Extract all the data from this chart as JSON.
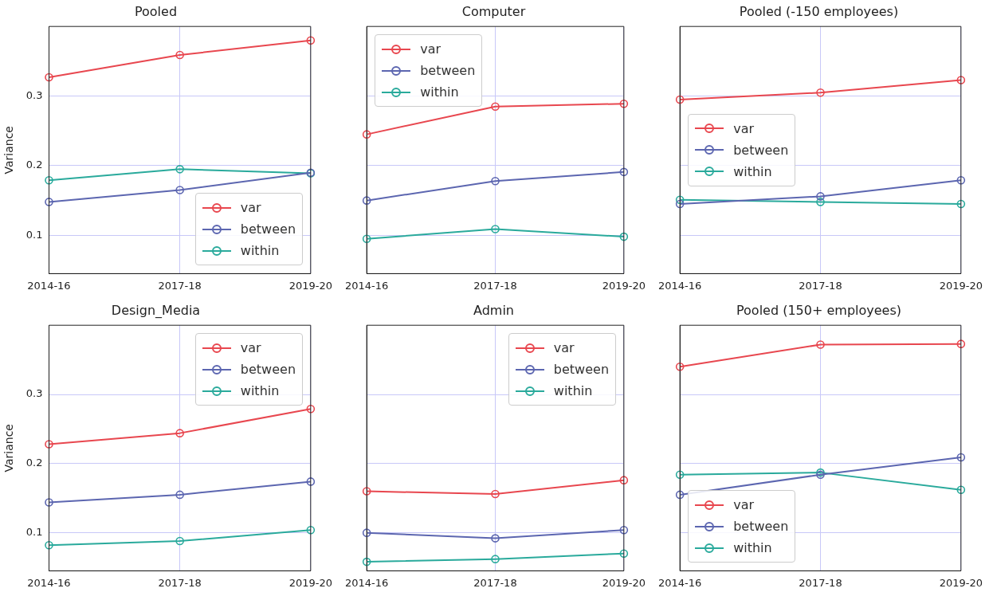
{
  "chart_data": [
    {
      "type": "line",
      "title": "Pooled",
      "ylabel": "Variance",
      "categories": [
        "2014-16",
        "2017-18",
        "2019-20"
      ],
      "ylim": [
        0.045,
        0.4
      ],
      "yticks": [
        0.1,
        0.2,
        0.3
      ],
      "grid": true,
      "legend": "bottom right",
      "marker": "circle",
      "series": [
        {
          "name": "var",
          "color": "#e8474f",
          "values": [
            0.327,
            0.359,
            0.38
          ]
        },
        {
          "name": "between",
          "color": "#5c66b0",
          "values": [
            0.148,
            0.165,
            0.19
          ]
        },
        {
          "name": "within",
          "color": "#2aaa9c",
          "values": [
            0.179,
            0.195,
            0.189
          ]
        }
      ]
    },
    {
      "type": "line",
      "title": "Computer",
      "categories": [
        "2014-16",
        "2017-18",
        "2019-20"
      ],
      "ylim": [
        0.045,
        0.4
      ],
      "yticks": [
        0.1,
        0.2,
        0.3
      ],
      "grid": true,
      "legend": "top left",
      "marker": "circle",
      "tick_labels": "x",
      "series": [
        {
          "name": "var",
          "color": "#e8474f",
          "values": [
            0.245,
            0.285,
            0.289
          ]
        },
        {
          "name": "between",
          "color": "#5c66b0",
          "values": [
            0.15,
            0.178,
            0.191
          ]
        },
        {
          "name": "within",
          "color": "#2aaa9c",
          "values": [
            0.095,
            0.109,
            0.098
          ]
        }
      ]
    },
    {
      "type": "line",
      "title": "Pooled (-150 employees)",
      "categories": [
        "2014-16",
        "2017-18",
        "2019-20"
      ],
      "ylim": [
        0.045,
        0.4
      ],
      "yticks": [
        0.1,
        0.2,
        0.3
      ],
      "grid": true,
      "legend": "left",
      "marker": "circle",
      "tick_labels": "x",
      "series": [
        {
          "name": "var",
          "color": "#e8474f",
          "values": [
            0.295,
            0.305,
            0.323
          ]
        },
        {
          "name": "between",
          "color": "#5c66b0",
          "values": [
            0.145,
            0.156,
            0.179
          ]
        },
        {
          "name": "within",
          "color": "#2aaa9c",
          "values": [
            0.151,
            0.148,
            0.145
          ]
        }
      ]
    },
    {
      "type": "line",
      "title": "Design_Media",
      "ylabel": "Variance",
      "categories": [
        "2014-16",
        "2017-18",
        "2019-20"
      ],
      "ylim": [
        0.045,
        0.4
      ],
      "yticks": [
        0.1,
        0.2,
        0.3
      ],
      "grid": true,
      "legend": "top right",
      "marker": "circle",
      "series": [
        {
          "name": "var",
          "color": "#e8474f",
          "values": [
            0.228,
            0.244,
            0.279
          ]
        },
        {
          "name": "between",
          "color": "#5c66b0",
          "values": [
            0.144,
            0.155,
            0.174
          ]
        },
        {
          "name": "within",
          "color": "#2aaa9c",
          "values": [
            0.082,
            0.088,
            0.104
          ]
        }
      ]
    },
    {
      "type": "line",
      "title": "Admin",
      "categories": [
        "2014-16",
        "2017-18",
        "2019-20"
      ],
      "ylim": [
        0.045,
        0.4
      ],
      "yticks": [
        0.1,
        0.2,
        0.3
      ],
      "grid": true,
      "legend": "top right",
      "marker": "circle",
      "tick_labels": "x",
      "series": [
        {
          "name": "var",
          "color": "#e8474f",
          "values": [
            0.16,
            0.156,
            0.176
          ]
        },
        {
          "name": "between",
          "color": "#5c66b0",
          "values": [
            0.1,
            0.092,
            0.104
          ]
        },
        {
          "name": "within",
          "color": "#2aaa9c",
          "values": [
            0.058,
            0.062,
            0.07
          ]
        }
      ]
    },
    {
      "type": "line",
      "title": "Pooled (150+ employees)",
      "categories": [
        "2014-16",
        "2017-18",
        "2019-20"
      ],
      "ylim": [
        0.045,
        0.4
      ],
      "yticks": [
        0.1,
        0.2,
        0.3
      ],
      "grid": true,
      "legend": "bottom left",
      "marker": "circle",
      "tick_labels": "x",
      "series": [
        {
          "name": "var",
          "color": "#e8474f",
          "values": [
            0.34,
            0.372,
            0.373
          ]
        },
        {
          "name": "between",
          "color": "#5c66b0",
          "values": [
            0.155,
            0.184,
            0.209
          ]
        },
        {
          "name": "within",
          "color": "#2aaa9c",
          "values": [
            0.184,
            0.187,
            0.162
          ]
        }
      ]
    }
  ]
}
